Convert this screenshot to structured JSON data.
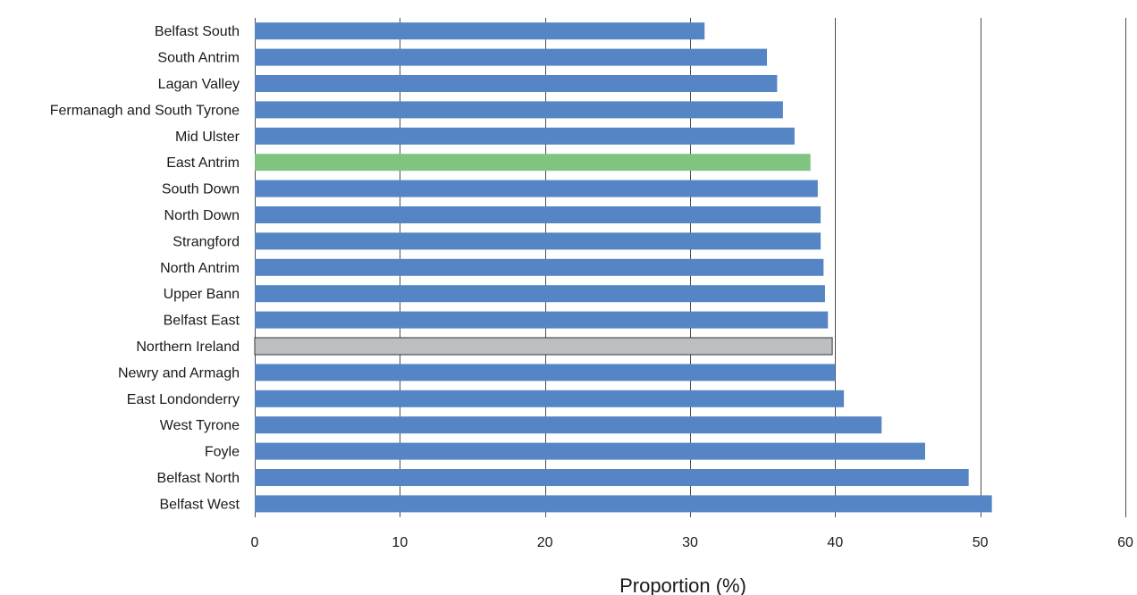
{
  "chart_data": {
    "type": "bar",
    "orientation": "horizontal",
    "categories": [
      "Belfast South",
      "South Antrim",
      "Lagan Valley",
      "Fermanagh and South Tyrone",
      "Mid Ulster",
      "East Antrim",
      "South Down",
      "North Down",
      "Strangford",
      "North Antrim",
      "Upper Bann",
      "Belfast East",
      "Northern Ireland",
      "Newry and Armagh",
      "East Londonderry",
      "West Tyrone",
      "Foyle",
      "Belfast North",
      "Belfast West"
    ],
    "values": [
      31.0,
      35.3,
      36.0,
      36.4,
      37.2,
      38.3,
      38.8,
      39.0,
      39.0,
      39.2,
      39.3,
      39.5,
      39.8,
      40.0,
      40.6,
      43.2,
      46.2,
      49.2,
      50.8
    ],
    "bar_colors": [
      "#5585c5",
      "#5585c5",
      "#5585c5",
      "#5585c5",
      "#5585c5",
      "#80c481",
      "#5585c5",
      "#5585c5",
      "#5585c5",
      "#5585c5",
      "#5585c5",
      "#5585c5",
      "#bcbfc2",
      "#5585c5",
      "#5585c5",
      "#5585c5",
      "#5585c5",
      "#5585c5",
      "#5585c5"
    ],
    "highlight": {
      "East Antrim": "#80c481",
      "Northern Ireland": "#bcbfc2"
    },
    "title": "",
    "xlabel": "Proportion (%)",
    "ylabel": "",
    "xlim": [
      0,
      60
    ],
    "xticks": [
      0,
      10,
      20,
      30,
      40,
      50,
      60
    ],
    "xtick_labels": [
      "0",
      "10",
      "20",
      "30",
      "40",
      "50",
      "60"
    ],
    "grid": true,
    "legend": "none"
  }
}
